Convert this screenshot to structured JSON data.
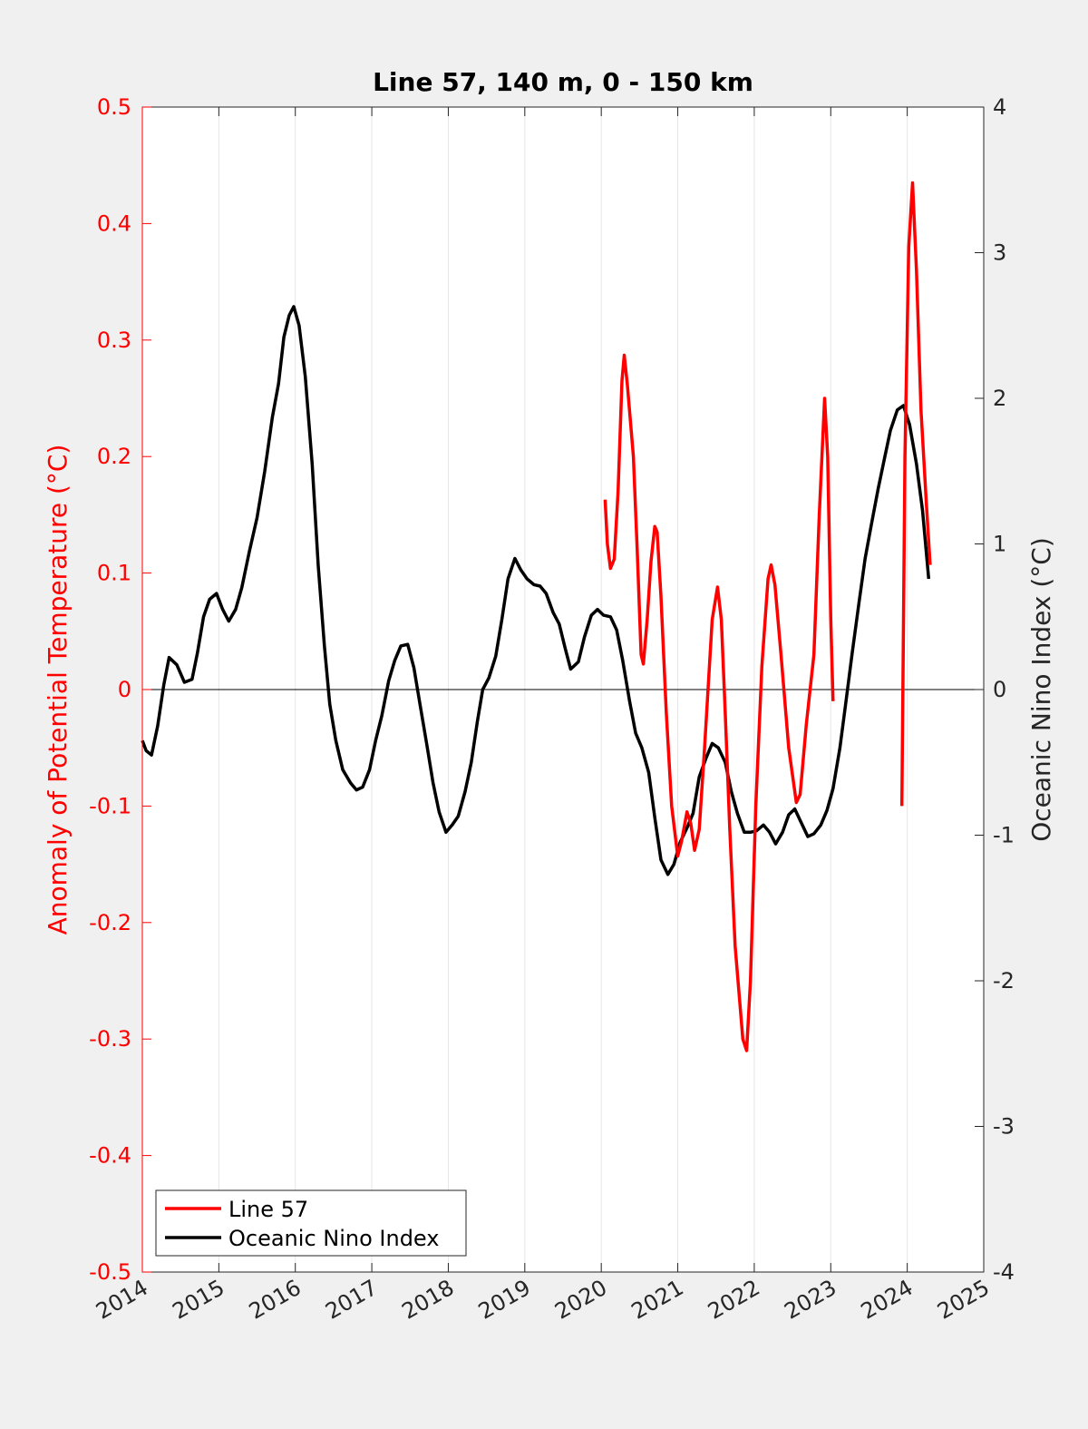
{
  "chart_data": {
    "type": "line",
    "title": "Line 57, 140 m, 0 - 150 km",
    "xlabel": "",
    "ylabel_left": "Anomaly of Potential Temperature (°C)",
    "ylabel_right": "Oceanic Nino Index (°C)",
    "xlim": [
      2014,
      2025
    ],
    "ylim_left": [
      -0.5,
      0.5
    ],
    "ylim_right": [
      -4,
      4
    ],
    "x_ticks": [
      "2014",
      "2015",
      "2016",
      "2017",
      "2018",
      "2019",
      "2020",
      "2021",
      "2022",
      "2023",
      "2024",
      "2025"
    ],
    "y_left_ticks": [
      "-0.5",
      "-0.4",
      "-0.3",
      "-0.2",
      "-0.1",
      "0",
      "0.1",
      "0.2",
      "0.3",
      "0.4",
      "0.5"
    ],
    "y_right_ticks": [
      "-4",
      "-3",
      "-2",
      "-1",
      "0",
      "1",
      "2",
      "3",
      "4"
    ],
    "grid": "vertical",
    "zero_line": true,
    "legend_position": "bottom-left",
    "colors": {
      "line57": "#ff0000",
      "oni": "#000000",
      "left_axis": "#ff0000",
      "right_axis": "#000000"
    },
    "series": [
      {
        "name": "Line 57",
        "axis": "left",
        "segments": [
          [
            [
              2020.05,
              0.163
            ],
            [
              2020.08,
              0.125
            ],
            [
              2020.12,
              0.104
            ],
            [
              2020.17,
              0.112
            ],
            [
              2020.22,
              0.17
            ],
            [
              2020.27,
              0.265
            ],
            [
              2020.3,
              0.287
            ],
            [
              2020.34,
              0.262
            ],
            [
              2020.42,
              0.2
            ],
            [
              2020.47,
              0.12
            ],
            [
              2020.52,
              0.03
            ],
            [
              2020.55,
              0.022
            ],
            [
              2020.6,
              0.06
            ],
            [
              2020.65,
              0.11
            ],
            [
              2020.7,
              0.14
            ],
            [
              2020.73,
              0.135
            ],
            [
              2020.78,
              0.08
            ],
            [
              2020.85,
              -0.02
            ],
            [
              2020.92,
              -0.1
            ],
            [
              2021.0,
              -0.143
            ],
            [
              2021.05,
              -0.13
            ],
            [
              2021.12,
              -0.105
            ],
            [
              2021.17,
              -0.115
            ],
            [
              2021.22,
              -0.138
            ],
            [
              2021.28,
              -0.12
            ],
            [
              2021.35,
              -0.05
            ],
            [
              2021.45,
              0.06
            ],
            [
              2021.52,
              0.088
            ],
            [
              2021.57,
              0.06
            ],
            [
              2021.62,
              -0.02
            ],
            [
              2021.68,
              -0.12
            ],
            [
              2021.75,
              -0.22
            ],
            [
              2021.85,
              -0.3
            ],
            [
              2021.9,
              -0.31
            ],
            [
              2021.95,
              -0.25
            ],
            [
              2022.02,
              -0.1
            ],
            [
              2022.1,
              0.02
            ],
            [
              2022.18,
              0.095
            ],
            [
              2022.22,
              0.107
            ],
            [
              2022.27,
              0.09
            ],
            [
              2022.35,
              0.03
            ],
            [
              2022.45,
              -0.05
            ],
            [
              2022.55,
              -0.097
            ],
            [
              2022.6,
              -0.09
            ],
            [
              2022.68,
              -0.03
            ],
            [
              2022.78,
              0.03
            ],
            [
              2022.85,
              0.15
            ],
            [
              2022.92,
              0.25
            ],
            [
              2022.96,
              0.2
            ],
            [
              2023.0,
              0.06
            ],
            [
              2023.03,
              -0.01
            ]
          ],
          [
            [
              2023.93,
              -0.1
            ],
            [
              2023.97,
              0.2
            ],
            [
              2024.02,
              0.38
            ],
            [
              2024.07,
              0.435
            ],
            [
              2024.12,
              0.36
            ],
            [
              2024.18,
              0.24
            ],
            [
              2024.25,
              0.16
            ],
            [
              2024.3,
              0.107
            ]
          ]
        ]
      },
      {
        "name": "Oceanic Nino Index",
        "axis": "right",
        "points": [
          [
            2014.0,
            -0.35
          ],
          [
            2014.05,
            -0.42
          ],
          [
            2014.12,
            -0.45
          ],
          [
            2014.2,
            -0.25
          ],
          [
            2014.28,
            0.03
          ],
          [
            2014.35,
            0.22
          ],
          [
            2014.45,
            0.17
          ],
          [
            2014.55,
            0.05
          ],
          [
            2014.65,
            0.07
          ],
          [
            2014.72,
            0.25
          ],
          [
            2014.8,
            0.5
          ],
          [
            2014.88,
            0.62
          ],
          [
            2014.97,
            0.66
          ],
          [
            2015.05,
            0.55
          ],
          [
            2015.13,
            0.47
          ],
          [
            2015.22,
            0.55
          ],
          [
            2015.3,
            0.7
          ],
          [
            2015.4,
            0.95
          ],
          [
            2015.5,
            1.18
          ],
          [
            2015.6,
            1.5
          ],
          [
            2015.7,
            1.87
          ],
          [
            2015.78,
            2.1
          ],
          [
            2015.85,
            2.42
          ],
          [
            2015.92,
            2.57
          ],
          [
            2015.98,
            2.63
          ],
          [
            2016.05,
            2.5
          ],
          [
            2016.13,
            2.15
          ],
          [
            2016.22,
            1.55
          ],
          [
            2016.3,
            0.85
          ],
          [
            2016.38,
            0.3
          ],
          [
            2016.45,
            -0.1
          ],
          [
            2016.53,
            -0.35
          ],
          [
            2016.62,
            -0.55
          ],
          [
            2016.72,
            -0.64
          ],
          [
            2016.8,
            -0.69
          ],
          [
            2016.88,
            -0.67
          ],
          [
            2016.97,
            -0.55
          ],
          [
            2017.05,
            -0.35
          ],
          [
            2017.13,
            -0.18
          ],
          [
            2017.22,
            0.06
          ],
          [
            2017.3,
            0.2
          ],
          [
            2017.38,
            0.3
          ],
          [
            2017.47,
            0.31
          ],
          [
            2017.55,
            0.15
          ],
          [
            2017.63,
            -0.1
          ],
          [
            2017.72,
            -0.38
          ],
          [
            2017.8,
            -0.64
          ],
          [
            2017.88,
            -0.84
          ],
          [
            2017.97,
            -0.98
          ],
          [
            2018.05,
            -0.93
          ],
          [
            2018.13,
            -0.87
          ],
          [
            2018.22,
            -0.7
          ],
          [
            2018.3,
            -0.5
          ],
          [
            2018.38,
            -0.22
          ],
          [
            2018.45,
            0.0
          ],
          [
            2018.53,
            0.08
          ],
          [
            2018.62,
            0.23
          ],
          [
            2018.7,
            0.48
          ],
          [
            2018.78,
            0.76
          ],
          [
            2018.87,
            0.9
          ],
          [
            2018.95,
            0.82
          ],
          [
            2019.03,
            0.76
          ],
          [
            2019.12,
            0.72
          ],
          [
            2019.2,
            0.71
          ],
          [
            2019.28,
            0.66
          ],
          [
            2019.37,
            0.53
          ],
          [
            2019.45,
            0.45
          ],
          [
            2019.53,
            0.28
          ],
          [
            2019.6,
            0.14
          ],
          [
            2019.7,
            0.19
          ],
          [
            2019.78,
            0.36
          ],
          [
            2019.87,
            0.51
          ],
          [
            2019.95,
            0.55
          ],
          [
            2020.03,
            0.51
          ],
          [
            2020.12,
            0.5
          ],
          [
            2020.2,
            0.41
          ],
          [
            2020.28,
            0.2
          ],
          [
            2020.37,
            -0.08
          ],
          [
            2020.45,
            -0.3
          ],
          [
            2020.53,
            -0.4
          ],
          [
            2020.62,
            -0.57
          ],
          [
            2020.7,
            -0.88
          ],
          [
            2020.78,
            -1.17
          ],
          [
            2020.87,
            -1.27
          ],
          [
            2020.95,
            -1.2
          ],
          [
            2021.03,
            -1.05
          ],
          [
            2021.12,
            -0.95
          ],
          [
            2021.2,
            -0.85
          ],
          [
            2021.28,
            -0.6
          ],
          [
            2021.37,
            -0.47
          ],
          [
            2021.45,
            -0.37
          ],
          [
            2021.53,
            -0.4
          ],
          [
            2021.62,
            -0.5
          ],
          [
            2021.7,
            -0.7
          ],
          [
            2021.78,
            -0.85
          ],
          [
            2021.87,
            -0.98
          ],
          [
            2021.95,
            -0.98
          ],
          [
            2022.03,
            -0.97
          ],
          [
            2022.12,
            -0.93
          ],
          [
            2022.2,
            -0.98
          ],
          [
            2022.28,
            -1.06
          ],
          [
            2022.37,
            -0.98
          ],
          [
            2022.45,
            -0.86
          ],
          [
            2022.53,
            -0.82
          ],
          [
            2022.62,
            -0.92
          ],
          [
            2022.7,
            -1.01
          ],
          [
            2022.78,
            -0.99
          ],
          [
            2022.87,
            -0.93
          ],
          [
            2022.95,
            -0.83
          ],
          [
            2023.03,
            -0.68
          ],
          [
            2023.12,
            -0.4
          ],
          [
            2023.2,
            -0.08
          ],
          [
            2023.28,
            0.25
          ],
          [
            2023.37,
            0.6
          ],
          [
            2023.45,
            0.9
          ],
          [
            2023.53,
            1.13
          ],
          [
            2023.62,
            1.38
          ],
          [
            2023.7,
            1.58
          ],
          [
            2023.78,
            1.78
          ],
          [
            2023.87,
            1.92
          ],
          [
            2023.95,
            1.95
          ],
          [
            2024.03,
            1.82
          ],
          [
            2024.12,
            1.55
          ],
          [
            2024.2,
            1.23
          ],
          [
            2024.28,
            0.76
          ]
        ]
      }
    ]
  }
}
